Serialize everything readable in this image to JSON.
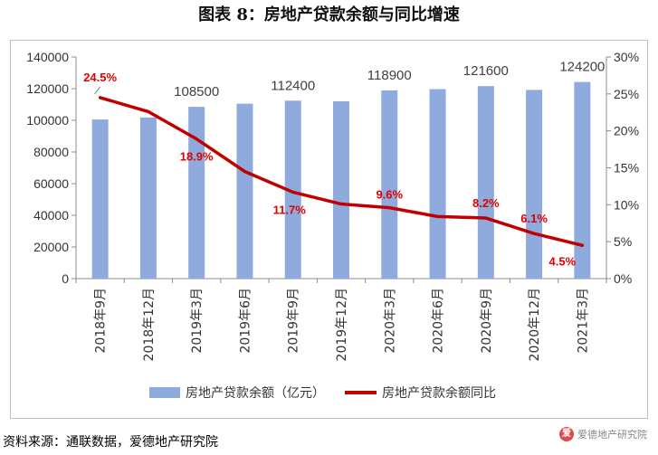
{
  "title": "图表 8：房地产贷款余额与同比增速",
  "source": "资料来源：通联数据，爱德地产研究院",
  "brand": {
    "text": "爱德地产研究院",
    "logo_icon": "爱德-logo-icon"
  },
  "chart_data": {
    "type": "bar+line",
    "categories": [
      "2018年9月",
      "2018年12月",
      "2019年3月",
      "2019年6月",
      "2019年9月",
      "2019年12月",
      "2020年3月",
      "2020年6月",
      "2020年9月",
      "2020年12月",
      "2021年3月"
    ],
    "series": [
      {
        "name": "房地产贷款余额（亿元）",
        "type": "bar",
        "axis": "left",
        "color": "#8faadc",
        "values": [
          100500,
          101800,
          108500,
          110500,
          112400,
          112000,
          118900,
          119700,
          121600,
          119200,
          124200
        ]
      },
      {
        "name": "房地产贷款余额同比",
        "type": "line",
        "axis": "right",
        "color": "#c00000",
        "values": [
          24.5,
          22.6,
          18.9,
          14.5,
          11.7,
          10.1,
          9.6,
          8.4,
          8.2,
          6.1,
          4.5
        ]
      }
    ],
    "bar_labels": [
      {
        "index": 2,
        "text": "108500"
      },
      {
        "index": 4,
        "text": "112400"
      },
      {
        "index": 6,
        "text": "118900"
      },
      {
        "index": 8,
        "text": "121600"
      },
      {
        "index": 10,
        "text": "124200"
      }
    ],
    "line_labels": [
      {
        "index": 0,
        "text": "24.5%"
      },
      {
        "index": 2,
        "text": "18.9%"
      },
      {
        "index": 4,
        "text": "11.7%"
      },
      {
        "index": 6,
        "text": "9.6%"
      },
      {
        "index": 8,
        "text": "8.2%"
      },
      {
        "index": 9,
        "text": "6.1%"
      },
      {
        "index": 10,
        "text": "4.5%"
      }
    ],
    "left_axis": {
      "min": 0,
      "max": 140000,
      "step": 20000,
      "ticks": [
        "0",
        "20000",
        "40000",
        "60000",
        "80000",
        "100000",
        "120000",
        "140000"
      ]
    },
    "right_axis": {
      "min": 0,
      "max": 30,
      "step": 5,
      "ticks": [
        "0%",
        "5%",
        "10%",
        "15%",
        "20%",
        "25%",
        "30%"
      ]
    },
    "grid": false,
    "legend_position": "bottom"
  }
}
